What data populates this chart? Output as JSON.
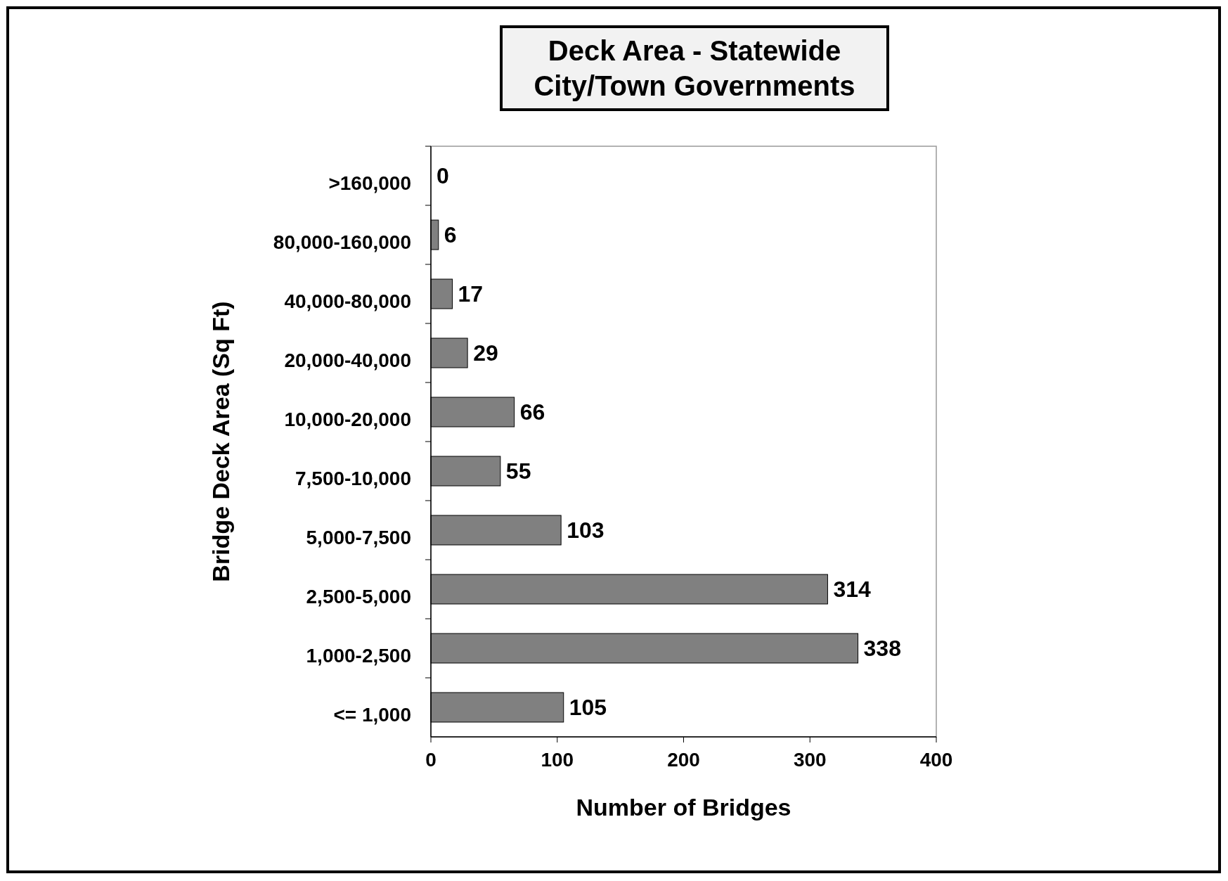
{
  "chart_data": {
    "type": "bar",
    "orientation": "horizontal",
    "title": "Deck Area - Statewide",
    "subtitle": "City/Town Governments",
    "xlabel": "Number of Bridges",
    "ylabel": "Bridge Deck Area (Sq Ft)",
    "categories": [
      ">160,000",
      "80,000-160,000",
      "40,000-80,000",
      "20,000-40,000",
      "10,000-20,000",
      "7,500-10,000",
      "5,000-7,500",
      "2,500-5,000",
      "1,000-2,500",
      "<= 1,000"
    ],
    "values": [
      0,
      6,
      17,
      29,
      66,
      55,
      103,
      314,
      338,
      105
    ],
    "color": "#808080",
    "xlim": [
      0,
      400
    ],
    "xticks": [
      0,
      100,
      200,
      300,
      400
    ],
    "data_labels": true
  }
}
